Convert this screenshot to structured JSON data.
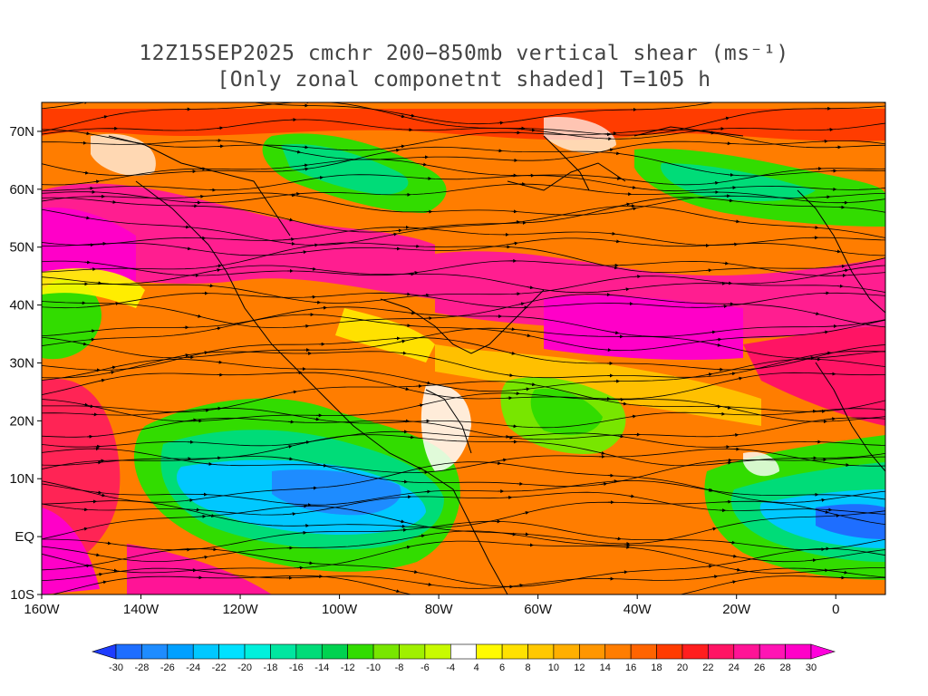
{
  "title": {
    "line1": "12Z15SEP2025 cmchr 200−850mb vertical shear (ms⁻¹)",
    "line2": "[Only zonal componetnt shaded] T=105 h"
  },
  "map": {
    "lon_range": [
      -160,
      10
    ],
    "lat_range": [
      -10,
      75
    ],
    "lon_ticks": [
      {
        "value": -160,
        "label": "160W"
      },
      {
        "value": -140,
        "label": "140W"
      },
      {
        "value": -120,
        "label": "120W"
      },
      {
        "value": -100,
        "label": "100W"
      },
      {
        "value": -80,
        "label": "80W"
      },
      {
        "value": -60,
        "label": "60W"
      },
      {
        "value": -40,
        "label": "40W"
      },
      {
        "value": -20,
        "label": "20W"
      },
      {
        "value": 0,
        "label": "0"
      }
    ],
    "lat_ticks": [
      {
        "value": 70,
        "label": "70N"
      },
      {
        "value": 60,
        "label": "60N"
      },
      {
        "value": 50,
        "label": "50N"
      },
      {
        "value": 40,
        "label": "40N"
      },
      {
        "value": 30,
        "label": "30N"
      },
      {
        "value": 20,
        "label": "20N"
      },
      {
        "value": 10,
        "label": "10N"
      },
      {
        "value": 0,
        "label": "EQ"
      },
      {
        "value": -10,
        "label": "10S"
      }
    ],
    "field": "zonal vertical shear 200-850mb",
    "units": "ms-1",
    "streamlines": true,
    "coastlines": true
  },
  "colorbar": {
    "levels": [
      "-30",
      "-28",
      "-26",
      "-24",
      "-22",
      "-20",
      "-18",
      "-16",
      "-14",
      "-12",
      "-10",
      "-8",
      "-6",
      "-4",
      "4",
      "6",
      "8",
      "10",
      "12",
      "14",
      "16",
      "18",
      "20",
      "22",
      "24",
      "26",
      "28",
      "30"
    ],
    "colors": [
      "#1e3cff",
      "#1e6eff",
      "#1e8cff",
      "#00a0ff",
      "#00c8ff",
      "#00e1ff",
      "#00f0dc",
      "#00e6a0",
      "#00dc78",
      "#00d250",
      "#32dc00",
      "#78e600",
      "#a0f000",
      "#c8fa00",
      "#ffffff",
      "#fffa00",
      "#ffe100",
      "#ffc800",
      "#ffaf00",
      "#ff9600",
      "#ff7d00",
      "#ff6400",
      "#ff3c00",
      "#ff1e1e",
      "#ff1464",
      "#ff1496",
      "#ff14b4",
      "#ff00c8",
      "#ff00dc"
    ]
  }
}
